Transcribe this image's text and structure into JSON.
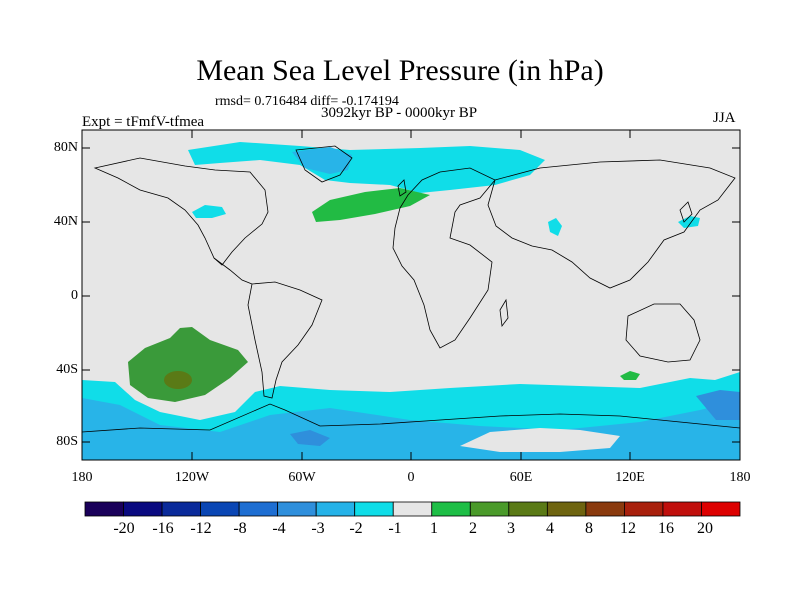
{
  "title": "Mean Sea Level Pressure (in hPa)",
  "stats": "rmsd= 0.716484 diff= -0.174194",
  "period": "3092kyr BP - 0000kyr BP",
  "experiment": "Expt = tFmfV-tfmea",
  "season": "JJA",
  "lat_labels": [
    "80N",
    "40N",
    "0",
    "40S",
    "80S"
  ],
  "lon_labels": [
    "180",
    "120W",
    "60W",
    "0",
    "60E",
    "120E",
    "180"
  ],
  "colorbar": {
    "labels": [
      "-20",
      "-16",
      "-12",
      "-8",
      "-4",
      "-3",
      "-2",
      "-1",
      "1",
      "2",
      "3",
      "4",
      "8",
      "12",
      "16",
      "20"
    ],
    "colors": [
      "#1a005a",
      "#0a0a80",
      "#0a2a9a",
      "#0a46b4",
      "#1e6ed2",
      "#2f8fdc",
      "#25b2e8",
      "#0fdde8",
      "#e6e6e6",
      "#1ebe46",
      "#4a9a2a",
      "#5a7a16",
      "#6e6410",
      "#8a3a0e",
      "#a8200c",
      "#c00f0c",
      "#dd0000"
    ]
  },
  "colors": {
    "land_bg": "#e6e6e6",
    "pos_green": "#22bb44",
    "deep_green": "#3a9a3a",
    "dark_center": "#4a7a20",
    "cyan": "#10dde8",
    "light_blue": "#28b4e8",
    "mid_blue": "#2f8fdc"
  }
}
